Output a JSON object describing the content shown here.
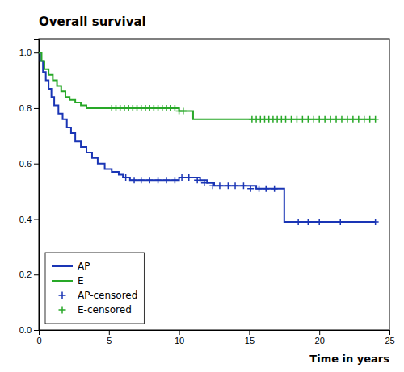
{
  "chart_data": {
    "type": "step",
    "title": "Overall survival",
    "xlabel": "Time in years",
    "xlim": [
      0,
      25
    ],
    "ylim": [
      0.0,
      1.05
    ],
    "xticks": [
      0,
      5,
      10,
      15,
      20,
      25
    ],
    "yticks": [
      {
        "value": 0.0,
        "label": "0.0"
      },
      0.2,
      0.4,
      0.6,
      0.8,
      {
        "value": 1.0,
        "label": "1.0"
      }
    ],
    "grid": false,
    "legend": "lower left",
    "series": [
      {
        "name": "AP",
        "type": "step",
        "color": "#1a35b5",
        "x": [
          0,
          0.1,
          0.3,
          0.5,
          0.7,
          0.9,
          1.1,
          1.4,
          1.7,
          2.0,
          2.3,
          2.6,
          3.0,
          3.4,
          3.8,
          4.2,
          4.7,
          5.2,
          5.7,
          6.0,
          6.5,
          7.0,
          7.5,
          8.0,
          8.5,
          9.0,
          9.5,
          10.0,
          10.5,
          11.0,
          11.5,
          12.0,
          12.5,
          13.0,
          13.5,
          14.0,
          14.5,
          15.0,
          15.5,
          16.0,
          16.5,
          17.0,
          17.5,
          18.0,
          19.0,
          20.0,
          21.0,
          22.0,
          23.0,
          24.0
        ],
        "values": [
          1.0,
          0.97,
          0.93,
          0.9,
          0.87,
          0.84,
          0.81,
          0.78,
          0.76,
          0.73,
          0.71,
          0.68,
          0.66,
          0.64,
          0.62,
          0.6,
          0.58,
          0.57,
          0.56,
          0.55,
          0.54,
          0.54,
          0.54,
          0.54,
          0.54,
          0.54,
          0.54,
          0.55,
          0.55,
          0.55,
          0.54,
          0.53,
          0.52,
          0.52,
          0.52,
          0.52,
          0.52,
          0.52,
          0.51,
          0.51,
          0.51,
          0.51,
          0.39,
          0.39,
          0.39,
          0.39,
          0.39,
          0.39,
          0.39,
          0.39
        ]
      },
      {
        "name": "E",
        "type": "step",
        "color": "#28a828",
        "x": [
          0,
          0.2,
          0.4,
          0.7,
          1.0,
          1.3,
          1.6,
          1.9,
          2.2,
          2.6,
          3.0,
          3.4,
          3.9,
          4.4,
          4.9,
          5.5,
          6.0,
          6.5,
          7.0,
          7.5,
          8.0,
          8.5,
          9.0,
          9.5,
          10.0,
          10.5,
          11.0,
          12.0,
          13.0,
          14.0,
          15.0,
          15.5,
          16.0,
          16.5,
          17.0,
          17.5,
          18.0,
          19.0,
          20.0,
          21.0,
          22.0,
          23.0,
          24.0
        ],
        "values": [
          1.0,
          0.97,
          0.94,
          0.92,
          0.9,
          0.88,
          0.86,
          0.84,
          0.83,
          0.82,
          0.81,
          0.8,
          0.8,
          0.8,
          0.8,
          0.8,
          0.8,
          0.8,
          0.8,
          0.8,
          0.8,
          0.8,
          0.8,
          0.8,
          0.79,
          0.79,
          0.76,
          0.76,
          0.76,
          0.76,
          0.76,
          0.76,
          0.76,
          0.76,
          0.76,
          0.76,
          0.76,
          0.76,
          0.76,
          0.76,
          0.76,
          0.76,
          0.76
        ]
      },
      {
        "name": "AP-censored",
        "type": "scatter",
        "marker": "+",
        "color": "#1a35b5",
        "x": [
          6.2,
          6.8,
          7.3,
          7.9,
          8.5,
          9.1,
          9.7,
          10.2,
          10.7,
          11.3,
          11.8,
          12.4,
          12.9,
          13.5,
          14.0,
          14.6,
          15.1,
          15.7,
          16.2,
          16.8,
          18.5,
          19.2,
          20.0,
          21.5,
          24.0
        ],
        "values": [
          0.55,
          0.54,
          0.54,
          0.54,
          0.54,
          0.54,
          0.54,
          0.55,
          0.55,
          0.54,
          0.53,
          0.52,
          0.52,
          0.52,
          0.52,
          0.52,
          0.51,
          0.51,
          0.51,
          0.51,
          0.39,
          0.39,
          0.39,
          0.39,
          0.39
        ]
      },
      {
        "name": "E-censored",
        "type": "scatter",
        "marker": "+",
        "color": "#28a828",
        "x": [
          5.2,
          5.5,
          5.8,
          6.1,
          6.4,
          6.7,
          7.0,
          7.3,
          7.6,
          7.9,
          8.2,
          8.5,
          8.8,
          9.1,
          9.4,
          9.7,
          10.0,
          10.3,
          15.2,
          15.5,
          15.8,
          16.1,
          16.4,
          16.7,
          17.0,
          17.3,
          17.6,
          18.0,
          18.4,
          18.8,
          19.2,
          19.6,
          20.0,
          20.4,
          20.8,
          21.2,
          21.6,
          22.0,
          22.4,
          22.8,
          23.2,
          23.6,
          24.0
        ],
        "values": [
          0.8,
          0.8,
          0.8,
          0.8,
          0.8,
          0.8,
          0.8,
          0.8,
          0.8,
          0.8,
          0.8,
          0.8,
          0.8,
          0.8,
          0.8,
          0.8,
          0.79,
          0.79,
          0.76,
          0.76,
          0.76,
          0.76,
          0.76,
          0.76,
          0.76,
          0.76,
          0.76,
          0.76,
          0.76,
          0.76,
          0.76,
          0.76,
          0.76,
          0.76,
          0.76,
          0.76,
          0.76,
          0.76,
          0.76,
          0.76,
          0.76,
          0.76,
          0.76
        ]
      }
    ]
  }
}
